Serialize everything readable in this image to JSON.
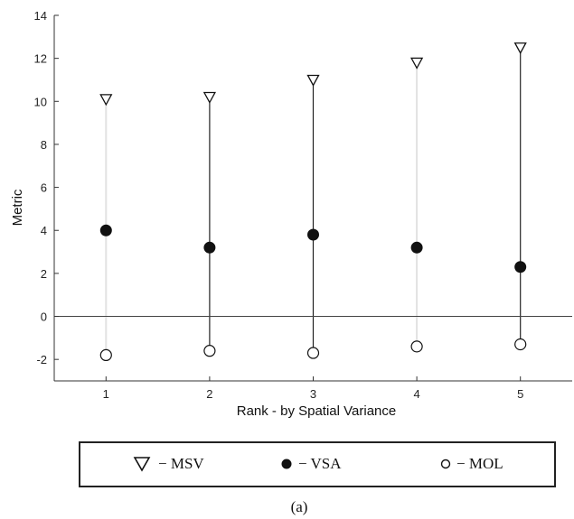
{
  "chart_data": {
    "type": "scatter",
    "xlabel": "Rank - by Spatial Variance",
    "ylabel": "Metric",
    "xlim": [
      0.5,
      5.5
    ],
    "ylim": [
      -3,
      14
    ],
    "xticks": [
      1,
      2,
      3,
      4,
      5
    ],
    "yticks": [
      -2,
      0,
      2,
      4,
      6,
      8,
      10,
      12,
      14
    ],
    "grid": false,
    "zero_line": true,
    "x": [
      1,
      2,
      3,
      4,
      5
    ],
    "series": [
      {
        "name": "MSV",
        "marker": "triangle-down-open",
        "values": [
          10.1,
          10.2,
          11.0,
          11.8,
          12.5
        ]
      },
      {
        "name": "VSA",
        "marker": "circle-filled",
        "values": [
          4.0,
          3.2,
          3.8,
          3.2,
          2.3
        ]
      },
      {
        "name": "MOL",
        "marker": "circle-open",
        "values": [
          -1.8,
          -1.6,
          -1.7,
          -1.4,
          -1.3
        ]
      }
    ],
    "range_lines": {
      "x": [
        1,
        2,
        3,
        4,
        5
      ],
      "style": [
        "light",
        "dark",
        "dark",
        "light",
        "dark"
      ]
    },
    "legend": {
      "placement": "bottom",
      "entries": [
        {
          "symbol": "▽",
          "label": "− MSV"
        },
        {
          "symbol": "●",
          "label": "− VSA"
        },
        {
          "symbol": "○",
          "label": "− MOL"
        }
      ]
    },
    "caption": "(a)"
  },
  "colors": {
    "axis": "#333333",
    "dark_stem": "#222222",
    "light_stem": "#e2e2e2",
    "marker": "#111111",
    "marker_fill": "#111111"
  }
}
